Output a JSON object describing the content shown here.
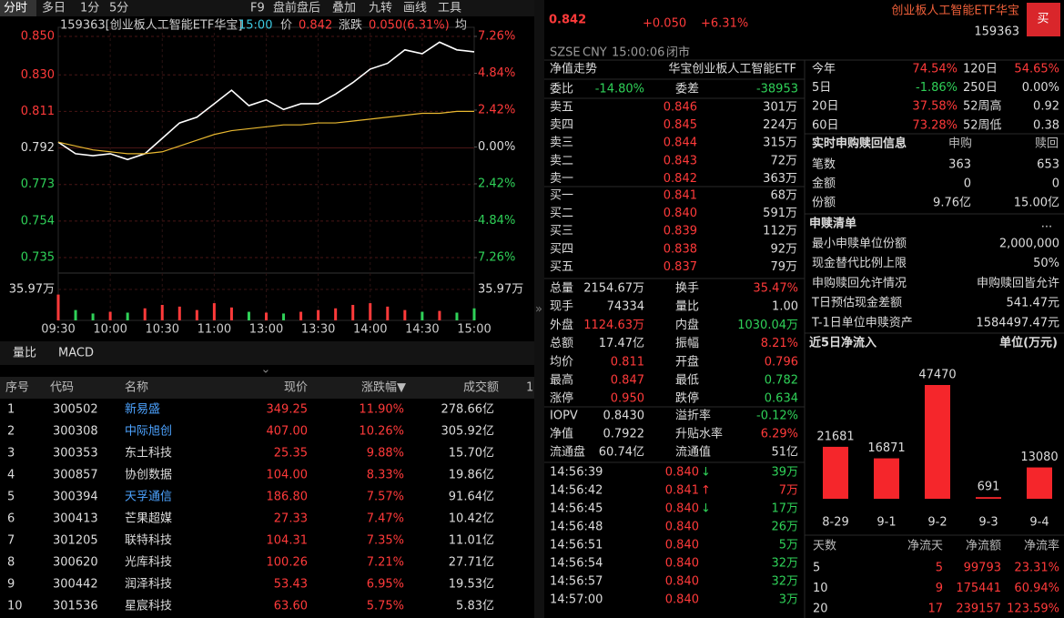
{
  "toolbar": [
    "分时",
    "多日",
    "1分",
    "5分",
    "F9",
    "盘前盘后",
    "叠加",
    "九转",
    "画线",
    "工具"
  ],
  "chart_data": [
    {
      "type": "line",
      "title": "159363[创业板人工智能ETF华宝]",
      "time": "15:00",
      "price": "0.842",
      "change_label": "涨跌",
      "change": "0.050(6.31%)",
      "categories": [
        "09:30",
        null,
        null,
        "10:00",
        null,
        null,
        "10:30",
        null,
        null,
        "11:00",
        null,
        null,
        "13:00",
        null,
        null,
        "13:30",
        null,
        null,
        "14:00",
        null,
        null,
        "14:30",
        null,
        null,
        "15:00"
      ],
      "series": [
        {
          "name": "价",
          "color": "#ffffff",
          "values": [
            0.795,
            0.789,
            0.788,
            0.789,
            0.786,
            0.789,
            0.797,
            0.805,
            0.808,
            0.815,
            0.822,
            0.814,
            0.817,
            0.812,
            0.815,
            0.815,
            0.82,
            0.826,
            0.833,
            0.836,
            0.843,
            0.841,
            0.847,
            0.843,
            0.842
          ]
        },
        {
          "name": "均",
          "color": "#e8b830",
          "values": [
            0.795,
            0.793,
            0.791,
            0.79,
            0.789,
            0.789,
            0.79,
            0.793,
            0.796,
            0.799,
            0.801,
            0.802,
            0.803,
            0.804,
            0.804,
            0.805,
            0.805,
            0.806,
            0.807,
            0.808,
            0.809,
            0.81,
            0.81,
            0.811,
            0.811
          ]
        }
      ],
      "ylim": [
        0.735,
        0.85
      ],
      "yticks": [
        {
          "value": 0.85,
          "label": "0.850"
        },
        {
          "value": 0.83,
          "label": "0.830"
        },
        {
          "value": 0.811,
          "label": "0.811"
        },
        {
          "value": 0.792,
          "label": "0.792"
        },
        {
          "value": 0.773,
          "label": "0.773"
        },
        {
          "value": 0.754,
          "label": "0.754"
        },
        {
          "value": 0.735,
          "label": "0.735"
        }
      ],
      "y2lim": [
        -7.26,
        7.26
      ],
      "y2ticks": [
        {
          "value": 7.26,
          "label": "7.26%"
        },
        {
          "value": 4.84,
          "label": "4.84%"
        },
        {
          "value": 2.42,
          "label": "2.42%"
        },
        {
          "value": 0,
          "label": "0.00%"
        },
        {
          "value": -2.42,
          "label": "2.42%"
        },
        {
          "value": -4.84,
          "label": "4.84%"
        },
        {
          "value": -7.26,
          "label": "7.26%"
        }
      ],
      "volume": {
        "values": [
          30,
          12,
          8,
          10,
          9,
          14,
          18,
          16,
          12,
          20,
          15,
          10,
          9,
          8,
          10,
          12,
          14,
          18,
          20,
          16,
          12,
          10,
          11,
          9,
          14
        ],
        "ylim": [
          0,
          35.97
        ],
        "yticks": [
          {
            "value": 35.97,
            "label": "35.97万"
          }
        ]
      },
      "grid": true
    },
    {
      "type": "bar",
      "title": "近5日净流入",
      "unit": "单位(万元)",
      "categories": [
        "8-29",
        "9-1",
        "9-2",
        "9-3",
        "9-4"
      ],
      "values": [
        21681,
        16871,
        47470,
        691,
        13080
      ],
      "color": "#f5262b"
    }
  ],
  "tabs": [
    "量比",
    "MACD"
  ],
  "list": {
    "columns": [
      "序号",
      "代码",
      "名称",
      "现价",
      "涨跌幅▼",
      "成交额",
      "1"
    ],
    "rows": [
      {
        "no": 1,
        "code": "300502",
        "name": "新易盛",
        "price": "349.25",
        "pct": "11.90%",
        "amount": "278.66亿",
        "color": "#4da3ff"
      },
      {
        "no": 2,
        "code": "300308",
        "name": "中际旭创",
        "price": "407.00",
        "pct": "10.26%",
        "amount": "305.92亿",
        "color": "#4da3ff"
      },
      {
        "no": 3,
        "code": "300353",
        "name": "东土科技",
        "price": "25.35",
        "pct": "9.88%",
        "amount": "15.70亿",
        "color": "#dcdcdc"
      },
      {
        "no": 4,
        "code": "300857",
        "name": "协创数据",
        "price": "104.00",
        "pct": "8.33%",
        "amount": "19.86亿",
        "color": "#dcdcdc"
      },
      {
        "no": 5,
        "code": "300394",
        "name": "天孚通信",
        "price": "186.80",
        "pct": "7.57%",
        "amount": "91.64亿",
        "color": "#4da3ff"
      },
      {
        "no": 6,
        "code": "300413",
        "name": "芒果超媒",
        "price": "27.33",
        "pct": "7.47%",
        "amount": "10.42亿",
        "color": "#dcdcdc"
      },
      {
        "no": 7,
        "code": "301205",
        "name": "联特科技",
        "price": "104.31",
        "pct": "7.35%",
        "amount": "11.01亿",
        "color": "#dcdcdc"
      },
      {
        "no": 8,
        "code": "300620",
        "name": "光库科技",
        "price": "100.26",
        "pct": "7.21%",
        "amount": "27.71亿",
        "color": "#dcdcdc"
      },
      {
        "no": 9,
        "code": "300442",
        "name": "润泽科技",
        "price": "53.43",
        "pct": "6.95%",
        "amount": "19.53亿",
        "color": "#dcdcdc"
      },
      {
        "no": 10,
        "code": "301536",
        "name": "星宸科技",
        "price": "63.60",
        "pct": "5.75%",
        "amount": "5.83亿",
        "color": "#dcdcdc"
      }
    ]
  },
  "quote": {
    "price": "0.842",
    "change": "+0.050",
    "pct": "+6.31%",
    "status": [
      "SZSE",
      "CNY",
      "15:00:06",
      "闭市"
    ],
    "name": "创业板人工智能ETF华宝",
    "code": "159363",
    "buy": "买"
  },
  "orderbook": {
    "tab": "净值走势",
    "fund": "华宝创业板人工智能ETF",
    "ratio": [
      "委比",
      "-14.80%",
      "委差",
      "-38953"
    ],
    "sell": [
      [
        "卖五",
        "0.846",
        "301万"
      ],
      [
        "卖四",
        "0.845",
        "224万"
      ],
      [
        "卖三",
        "0.844",
        "315万"
      ],
      [
        "卖二",
        "0.843",
        "72万"
      ],
      [
        "卖一",
        "0.842",
        "363万"
      ]
    ],
    "buy": [
      [
        "买一",
        "0.841",
        "68万"
      ],
      [
        "买二",
        "0.840",
        "591万"
      ],
      [
        "买三",
        "0.839",
        "112万"
      ],
      [
        "买四",
        "0.838",
        "92万"
      ],
      [
        "买五",
        "0.837",
        "79万"
      ]
    ]
  },
  "stats": [
    [
      "总量",
      "2154.67万",
      "换手",
      "35.47%"
    ],
    [
      "现手",
      "74334",
      "量比",
      "1.00"
    ],
    [
      "外盘",
      "1124.63万",
      "内盘",
      "1030.04万"
    ],
    [
      "总额",
      "17.47亿",
      "振幅",
      "8.21%"
    ],
    [
      "均价",
      "0.811",
      "开盘",
      "0.796"
    ],
    [
      "最高",
      "0.847",
      "最低",
      "0.782"
    ],
    [
      "涨停",
      "0.950",
      "跌停",
      "0.634"
    ]
  ],
  "fund": [
    [
      "IOPV",
      "0.8430",
      "溢折率",
      "-0.12%"
    ],
    [
      "净值",
      "0.7922",
      "升贴水率",
      "6.29%"
    ],
    [
      "流通盘",
      "60.74亿",
      "流通值",
      "51亿"
    ]
  ],
  "trades": [
    {
      "time": "14:56:39",
      "price": "0.840",
      "dir": "↓",
      "volume": "39万"
    },
    {
      "time": "14:56:42",
      "price": "0.841",
      "dir": "↑",
      "volume": "7万"
    },
    {
      "time": "14:56:45",
      "price": "0.840",
      "dir": "↓",
      "volume": "17万"
    },
    {
      "time": "14:56:48",
      "price": "0.840",
      "volume": "26万"
    },
    {
      "time": "14:56:51",
      "price": "0.840",
      "volume": "5万"
    },
    {
      "time": "14:56:54",
      "price": "0.840",
      "volume": "32万"
    },
    {
      "time": "14:56:57",
      "price": "0.840",
      "volume": "32万"
    },
    {
      "time": "14:57:00",
      "price": "0.840",
      "volume": "3万"
    }
  ],
  "returns": [
    [
      "今年",
      "74.54%",
      "120日",
      "54.65%"
    ],
    [
      "5日",
      "-1.86%",
      "250日",
      "0.00%"
    ],
    [
      "20日",
      "37.58%",
      "52周高",
      "0.92"
    ],
    [
      "60日",
      "73.28%",
      "52周低",
      "0.38"
    ]
  ],
  "creation": {
    "title": "实时申购赎回信息",
    "columns": [
      "申购",
      "赎回"
    ],
    "rows": [
      [
        "笔数",
        "363",
        "653"
      ],
      [
        "金额",
        "0",
        "0"
      ],
      [
        "份额",
        "9.76亿",
        "15.00亿"
      ]
    ]
  },
  "basket": {
    "title": "申赎清单",
    "more": "...",
    "rows": [
      [
        "最小申赎单位份额",
        "2,000,000"
      ],
      [
        "现金替代比例上限",
        "50%"
      ],
      [
        "申购赎回允许情况",
        "申购赎回皆允许"
      ],
      [
        "T日预估现金差额",
        "541.47元"
      ],
      [
        "T-1日单位申赎资产",
        "1584497.47元"
      ]
    ]
  },
  "inflow_table": {
    "columns": [
      "天数",
      "净流天",
      "净流额",
      "净流率"
    ],
    "rows": [
      [
        "5",
        "5",
        "99793",
        "23.31%"
      ],
      [
        "10",
        "9",
        "175441",
        "60.94%"
      ],
      [
        "20",
        "17",
        "239157",
        "123.59%"
      ]
    ]
  }
}
